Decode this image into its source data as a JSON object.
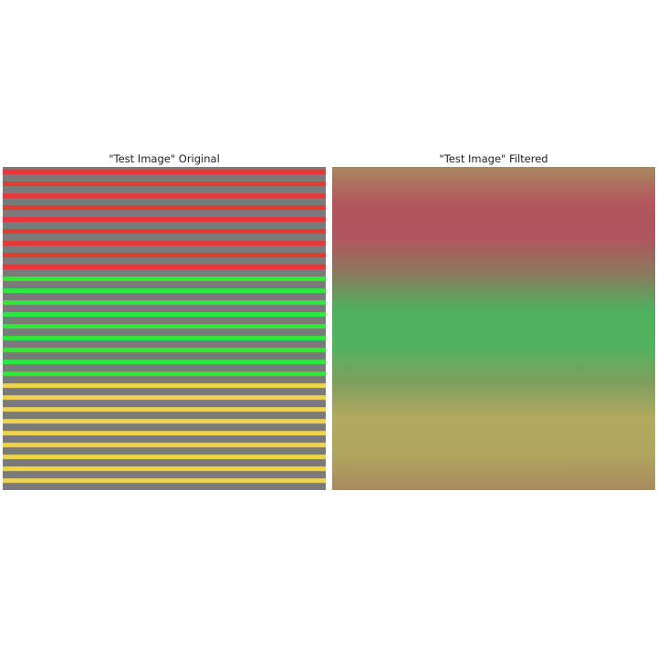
{
  "panels": [
    {
      "title": "\"Test Image\" Original",
      "stripe_colors": [
        "#e53935",
        "#2ee83a",
        "#f0d54a"
      ],
      "background_color": "#7a7a7a"
    },
    {
      "title": "\"Test Image\" Filtered",
      "gradient_colors": [
        "#a8885e",
        "#b3565e",
        "#b0565f",
        "#8a7a5e",
        "#4fb05e",
        "#52b45e",
        "#7f9e5e",
        "#b2aa5e",
        "#b1a55e",
        "#a88a5e"
      ]
    }
  ]
}
